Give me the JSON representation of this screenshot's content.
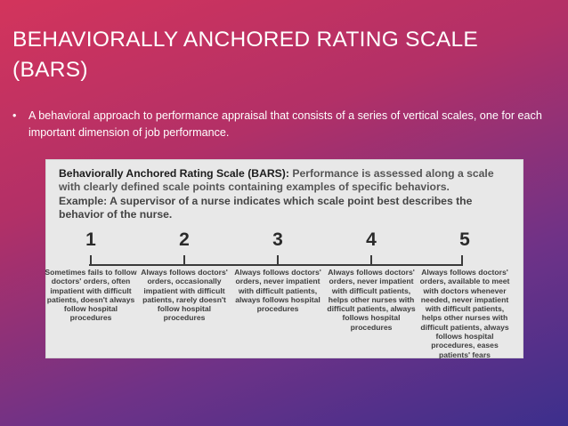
{
  "slide": {
    "title": "BEHAVIORALLY ANCHORED RATING SCALE (BARS)",
    "bullet": "A behavioral approach to performance appraisal that consists of a series of vertical scales, one for each important dimension of job performance."
  },
  "figure": {
    "heading": "Behaviorally Anchored Rating Scale (BARS):",
    "description": "Performance is assessed along a scale with clearly defined scale points containing examples of specific behaviors.",
    "example": "Example: A supervisor of a nurse indicates which scale point best describes the behavior of the nurse.",
    "scale_points": [
      {
        "number": "1",
        "anchor": "Sometimes fails to follow doctors' orders, often impatient with difficult patients, doesn't always follow hospital procedures"
      },
      {
        "number": "2",
        "anchor": "Always follows doctors' orders, occasionally impatient with difficult patients, rarely doesn't follow hospital procedures"
      },
      {
        "number": "3",
        "anchor": "Always follows doctors' orders, never impatient with difficult patients, always follows hospital procedures"
      },
      {
        "number": "4",
        "anchor": "Always follows doctors' orders, never impatient with difficult patients, helps other nurses with difficult patients, always follows hospital procedures"
      },
      {
        "number": "5",
        "anchor": "Always follows doctors' orders, available to meet with doctors whenever needed, never impatient with difficult patients, helps other nurses with difficult patients, always follows hospital procedures, eases patients' fears"
      }
    ]
  }
}
